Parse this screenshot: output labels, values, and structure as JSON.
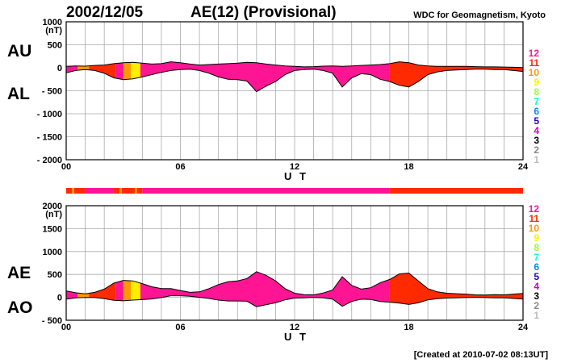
{
  "header": {
    "date": "2002/12/05",
    "title": "AE(12) (Provisional)",
    "organization": "WDC for Geomagnetism, Kyoto"
  },
  "footer": {
    "created": "[Created at 2010-07-02 08:13UT]"
  },
  "legend": {
    "items": [
      {
        "label": "12",
        "color": "#ff1493"
      },
      {
        "label": "11",
        "color": "#ff2a00"
      },
      {
        "label": "10",
        "color": "#ff9900"
      },
      {
        "label": "9",
        "color": "#ffee00"
      },
      {
        "label": "8",
        "color": "#99ff33"
      },
      {
        "label": "7",
        "color": "#00ffdd"
      },
      {
        "label": "6",
        "color": "#0088ff"
      },
      {
        "label": "5",
        "color": "#2200cc"
      },
      {
        "label": "4",
        "color": "#cc00cc"
      },
      {
        "label": "3",
        "color": "#000000"
      },
      {
        "label": "2",
        "color": "#888888"
      },
      {
        "label": "1",
        "color": "#bbbbbb"
      }
    ]
  },
  "colors": {
    "grid": "#aaaaaa",
    "c12": "#ff1493",
    "c11": "#ff2a00",
    "c10": "#ff9900",
    "c9": "#ffee00"
  },
  "chart_data": [
    {
      "type": "area",
      "series": [
        {
          "name": "AU",
          "x": [
            0,
            0.5,
            1,
            1.5,
            2,
            2.5,
            3,
            3.5,
            4,
            4.5,
            5,
            5.5,
            6,
            6.5,
            7,
            7.5,
            8,
            8.5,
            9,
            9.5,
            10,
            10.5,
            11,
            11.5,
            12,
            12.5,
            13,
            13.5,
            14,
            14.5,
            15,
            15.5,
            16,
            16.5,
            17,
            17.5,
            18,
            18.5,
            19,
            19.5,
            20,
            20.5,
            21,
            21.5,
            22,
            22.5,
            23,
            23.5,
            24
          ],
          "values": [
            30,
            40,
            35,
            50,
            60,
            90,
            110,
            120,
            100,
            80,
            90,
            130,
            110,
            80,
            60,
            70,
            80,
            90,
            100,
            120,
            110,
            80,
            60,
            40,
            30,
            20,
            25,
            35,
            40,
            30,
            40,
            50,
            60,
            70,
            90,
            130,
            110,
            60,
            40,
            30,
            30,
            30,
            30,
            25,
            20,
            20,
            15,
            10,
            5
          ]
        },
        {
          "name": "AL",
          "x": [
            0,
            0.5,
            1,
            1.5,
            2,
            2.5,
            3,
            3.5,
            4,
            4.5,
            5,
            5.5,
            6,
            6.5,
            7,
            7.5,
            8,
            8.5,
            9,
            9.5,
            10,
            10.5,
            11,
            11.5,
            12,
            12.5,
            13,
            13.5,
            14,
            14.5,
            15,
            15.5,
            16,
            16.5,
            17,
            17.5,
            18,
            18.5,
            19,
            19.5,
            20,
            20.5,
            21,
            21.5,
            22,
            22.5,
            23,
            23.5,
            24
          ],
          "values": [
            -110,
            -60,
            -40,
            -60,
            -120,
            -220,
            -260,
            -240,
            -200,
            -150,
            -100,
            -60,
            -40,
            -30,
            -60,
            -120,
            -200,
            -250,
            -260,
            -290,
            -520,
            -400,
            -300,
            -150,
            -60,
            -40,
            -30,
            -60,
            -120,
            -420,
            -220,
            -130,
            -150,
            -250,
            -300,
            -380,
            -420,
            -300,
            -150,
            -90,
            -60,
            -50,
            -40,
            -30,
            -30,
            -40,
            -40,
            -60,
            -80
          ]
        }
      ],
      "xlabel": "U T",
      "xticks": [
        "00",
        "06",
        "12",
        "18",
        "24"
      ],
      "ylabel": "(nT)",
      "yticks": [
        "1000",
        "500",
        "0",
        "- 500",
        "- 1000",
        "- 1500",
        "- 2000"
      ],
      "xlim": [
        0,
        24
      ],
      "ylim": [
        -2000,
        1000
      ],
      "panel_labels": [
        "AU",
        "AL"
      ]
    },
    {
      "type": "area",
      "series": [
        {
          "name": "AE",
          "x": [
            0,
            0.5,
            1,
            1.5,
            2,
            2.5,
            3,
            3.5,
            4,
            4.5,
            5,
            5.5,
            6,
            6.5,
            7,
            7.5,
            8,
            8.5,
            9,
            9.5,
            10,
            10.5,
            11,
            11.5,
            12,
            12.5,
            13,
            13.5,
            14,
            14.5,
            15,
            15.5,
            16,
            16.5,
            17,
            17.5,
            18,
            18.5,
            19,
            19.5,
            20,
            20.5,
            21,
            21.5,
            22,
            22.5,
            23,
            23.5,
            24
          ],
          "values": [
            140,
            100,
            75,
            110,
            180,
            310,
            370,
            360,
            300,
            230,
            190,
            190,
            150,
            110,
            120,
            190,
            280,
            340,
            360,
            410,
            560,
            480,
            360,
            190,
            90,
            60,
            55,
            95,
            160,
            450,
            260,
            180,
            210,
            320,
            390,
            510,
            530,
            360,
            190,
            120,
            90,
            80,
            70,
            55,
            50,
            60,
            55,
            70,
            85
          ]
        },
        {
          "name": "AO",
          "x": [
            0,
            0.5,
            1,
            1.5,
            2,
            2.5,
            3,
            3.5,
            4,
            4.5,
            5,
            5.5,
            6,
            6.5,
            7,
            7.5,
            8,
            8.5,
            9,
            9.5,
            10,
            10.5,
            11,
            11.5,
            12,
            12.5,
            13,
            13.5,
            14,
            14.5,
            15,
            15.5,
            16,
            16.5,
            17,
            17.5,
            18,
            18.5,
            19,
            19.5,
            20,
            20.5,
            21,
            21.5,
            22,
            22.5,
            23,
            23.5,
            24
          ],
          "values": [
            -40,
            -10,
            -2,
            -5,
            -30,
            -65,
            -75,
            -60,
            -50,
            -35,
            -5,
            35,
            35,
            25,
            0,
            -25,
            -60,
            -80,
            -80,
            -85,
            -205,
            -160,
            -120,
            -55,
            -15,
            -10,
            -3,
            -13,
            -40,
            -195,
            -90,
            -40,
            -45,
            -90,
            -105,
            -125,
            -155,
            -120,
            -55,
            -30,
            -15,
            -10,
            -5,
            -3,
            -5,
            -10,
            -13,
            -25,
            -38
          ]
        }
      ],
      "xlabel": "U T",
      "xticks": [
        "00",
        "06",
        "12",
        "18",
        "24"
      ],
      "ylabel": "(nT)",
      "yticks": [
        "2000",
        "1500",
        "1000",
        "500",
        "0",
        "- 500"
      ],
      "xlim": [
        0,
        24
      ],
      "ylim": [
        -500,
        2000
      ],
      "panel_labels": [
        "AE",
        "AO"
      ]
    }
  ],
  "station_bar": {
    "segments": [
      {
        "from": 0,
        "to": 1.0,
        "level": 11
      },
      {
        "from": 1.0,
        "to": 2.5,
        "level": 12
      },
      {
        "from": 2.5,
        "to": 4.0,
        "level": 11
      },
      {
        "from": 4.0,
        "to": 17.0,
        "level": 12
      },
      {
        "from": 17.0,
        "to": 24,
        "level": 11
      }
    ]
  },
  "fill_segments": [
    {
      "from": 0,
      "to": 0.6,
      "level": 12
    },
    {
      "from": 0.6,
      "to": 1.2,
      "level": 10
    },
    {
      "from": 1.2,
      "to": 2.6,
      "level": 11
    },
    {
      "from": 2.6,
      "to": 3.0,
      "level": 12
    },
    {
      "from": 3.0,
      "to": 3.4,
      "level": 10
    },
    {
      "from": 3.4,
      "to": 3.9,
      "level": 9
    },
    {
      "from": 3.9,
      "to": 17.0,
      "level": 12
    },
    {
      "from": 17.0,
      "to": 24,
      "level": 11
    }
  ]
}
